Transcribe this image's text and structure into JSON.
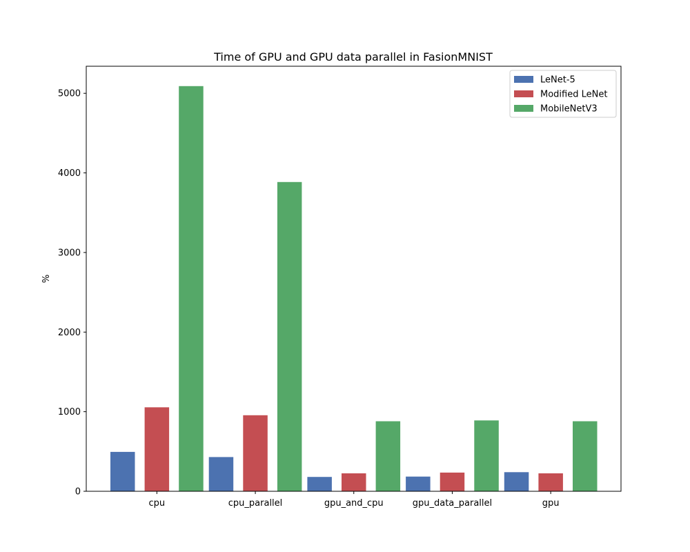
{
  "chart_data": {
    "type": "bar",
    "title": "Time of GPU and GPU data parallel in FasionMNIST",
    "xlabel": "",
    "ylabel": "%",
    "categories": [
      "cpu",
      "cpu_parallel",
      "gpu_and_cpu",
      "gpu_data_parallel",
      "gpu"
    ],
    "series": [
      {
        "name": "LeNet-5",
        "color": "#4c72b0",
        "values": [
          495,
          430,
          180,
          185,
          240
        ]
      },
      {
        "name": "Modified LeNet",
        "color": "#c44e52",
        "values": [
          1055,
          955,
          225,
          235,
          225
        ]
      },
      {
        "name": "MobileNetV3",
        "color": "#55a868",
        "values": [
          5090,
          3885,
          880,
          890,
          880
        ]
      }
    ],
    "ylim": [
      0,
      5340
    ],
    "yticks": [
      0,
      1000,
      2000,
      3000,
      4000,
      5000
    ],
    "grid": false,
    "legend_position": "top-right"
  }
}
